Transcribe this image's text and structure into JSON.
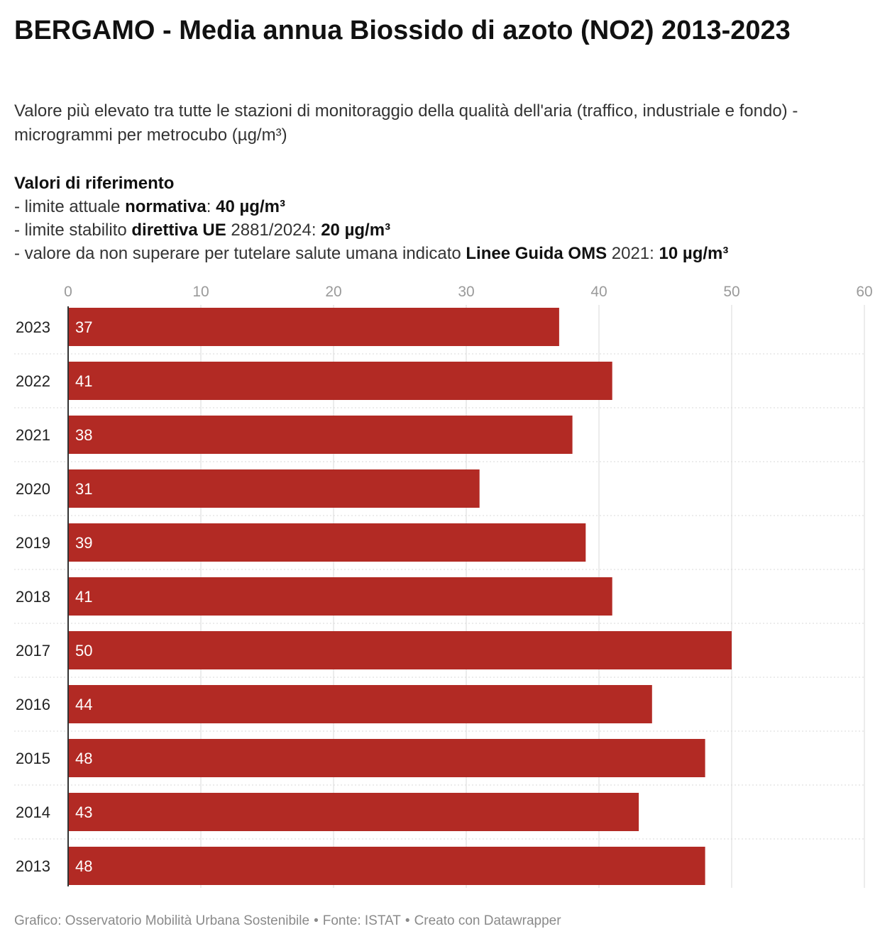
{
  "title": "BERGAMO - Media annua Biossido di azoto (NO2) 2013-2023",
  "subtitle": "Valore più elevato tra tutte le stazioni di monitoraggio della qualità dell'aria (traffico, industriale e fondo) - microgrammi per metrocubo (µg/m³)",
  "references": {
    "heading": "Valori di riferimento",
    "items": [
      {
        "prefix": "- limite attuale ",
        "bold": "normativa",
        "middle": ": ",
        "value": "40 µg/m³"
      },
      {
        "prefix": "- limite stabilito ",
        "bold": "direttiva UE",
        "middle": " 2881/2024: ",
        "value": "20 µg/m³"
      },
      {
        "prefix": "- valore da non superare per tutelare salute umana indicato ",
        "bold": "Linee Guida OMS",
        "middle": " 2021: ",
        "value": "10 µg/m³"
      }
    ]
  },
  "footer": {
    "credit": "Grafico: Osservatorio Mobilità Urbana Sostenibile",
    "source": "Fonte: ISTAT",
    "tool": "Creato con Datawrapper",
    "separator": "•"
  },
  "colors": {
    "bar": "#b22a24",
    "grid": "#d9d9d9",
    "axis": "#333333"
  },
  "chart_data": {
    "type": "bar",
    "orientation": "horizontal",
    "categories": [
      "2023",
      "2022",
      "2021",
      "2020",
      "2019",
      "2018",
      "2017",
      "2016",
      "2015",
      "2014",
      "2013"
    ],
    "values": [
      37,
      41,
      38,
      31,
      39,
      41,
      50,
      44,
      48,
      43,
      48
    ],
    "xlim": [
      0,
      60
    ],
    "xticks": [
      0,
      10,
      20,
      30,
      40,
      50,
      60
    ],
    "grid": true,
    "data_labels": true
  }
}
